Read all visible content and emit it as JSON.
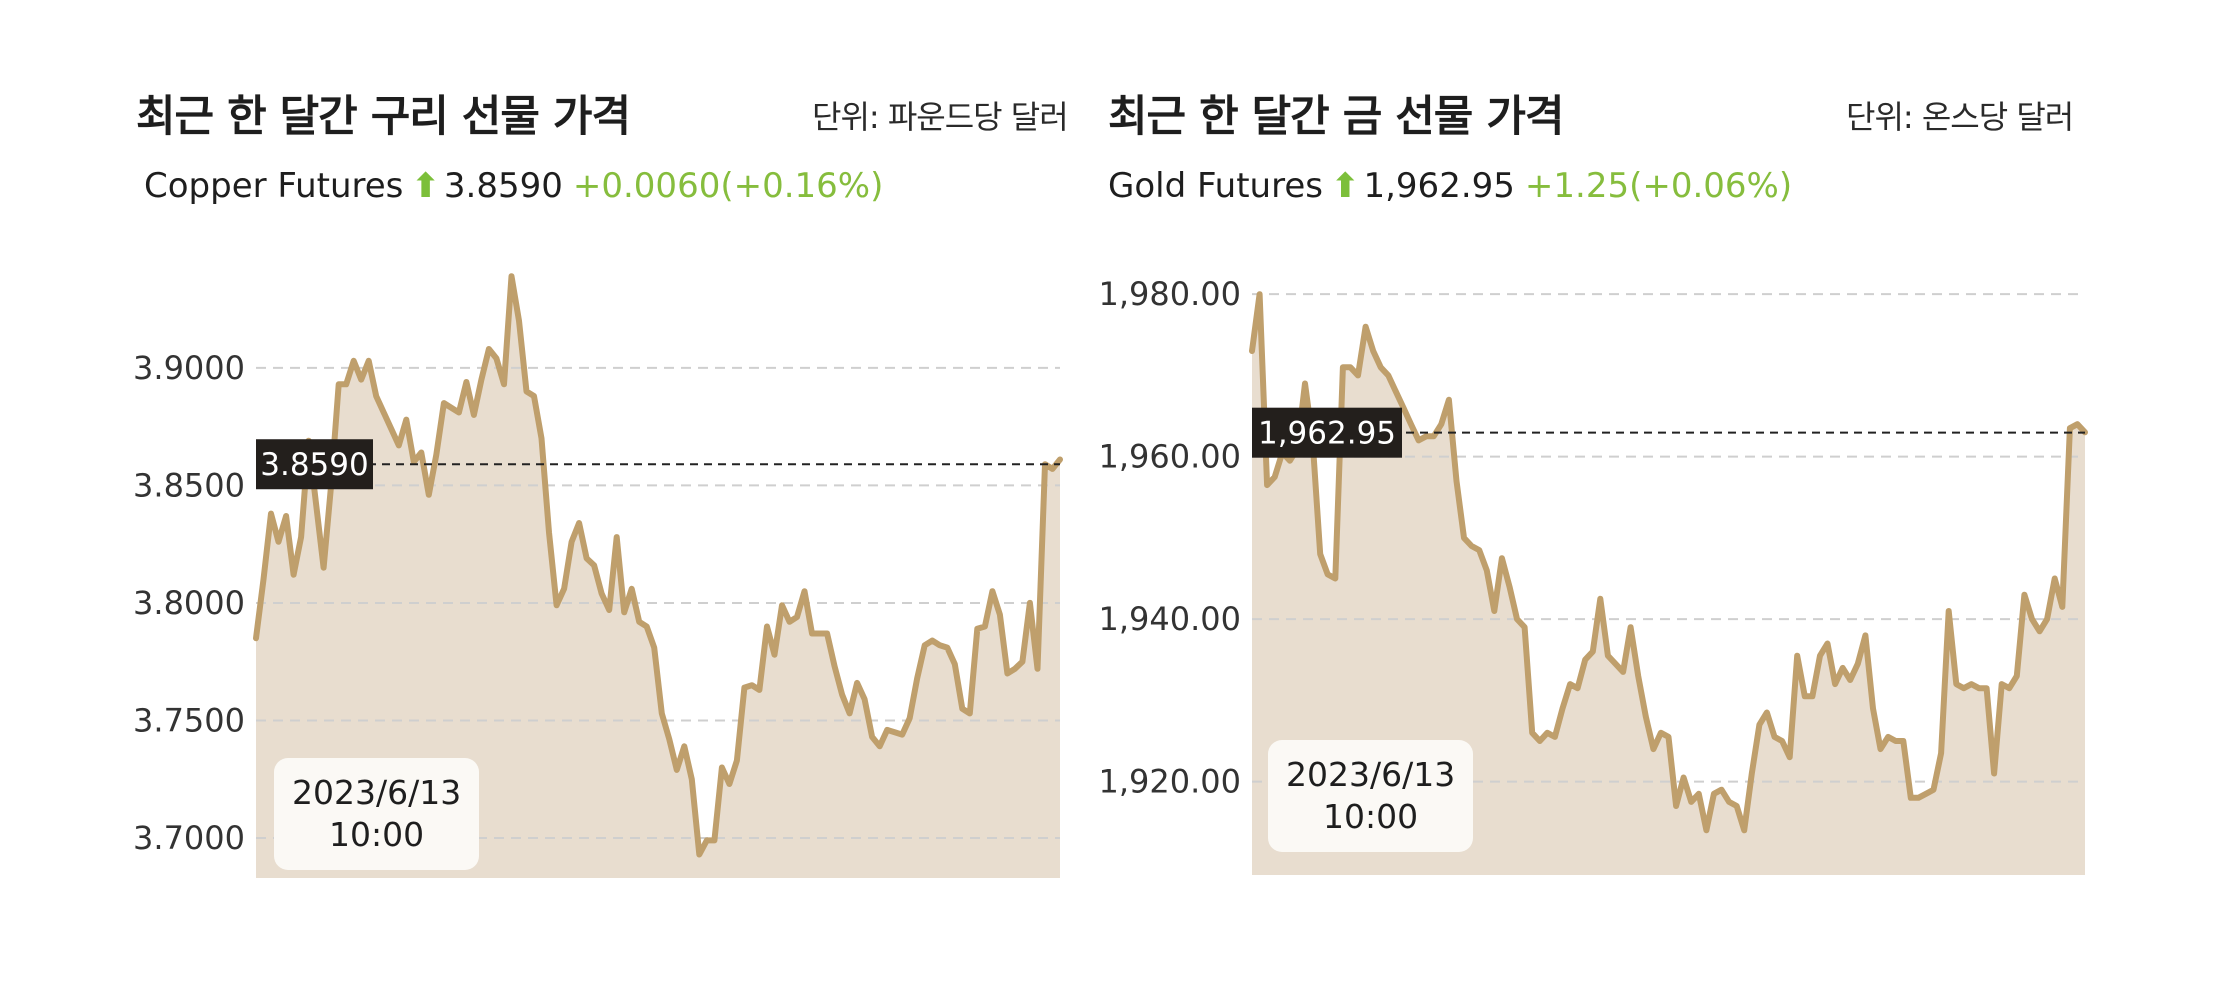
{
  "colors": {
    "line": "#bf9f6c",
    "area": "#e8ddcf",
    "grid": "#cfcfcf",
    "up": "#7cbf3a",
    "tag_bg": "#231f1c"
  },
  "copper": {
    "title": "최근 한 달간 구리 선물 가격",
    "unit": "단위: 파운드당 달러",
    "instrument": "Copper Futures",
    "arrow": "⬆",
    "price": "3.8590",
    "change": "+0.0060(+0.16%)",
    "tag": "3.8590",
    "date": "2023/6/13",
    "time": "10:00"
  },
  "gold": {
    "title": "최근 한 달간 금 선물 가격",
    "unit": "단위: 온스당 달러",
    "instrument": "Gold Futures",
    "arrow": "⬆",
    "price": "1,962.95",
    "change": "+1.25(+0.06%)",
    "tag": "1,962.95",
    "date": "2023/6/13",
    "time": "10:00"
  },
  "chart_data": [
    {
      "type": "area",
      "title": "최근 한 달간 구리 선물 가격",
      "ylabel": "단위: 파운드당 달러",
      "series": [
        {
          "name": "Copper Futures",
          "values": [
            3.785,
            3.81,
            3.838,
            3.826,
            3.837,
            3.812,
            3.828,
            3.869,
            3.842,
            3.815,
            3.85,
            3.893,
            3.893,
            3.903,
            3.895,
            3.903,
            3.888,
            3.881,
            3.874,
            3.867,
            3.878,
            3.86,
            3.864,
            3.846,
            3.863,
            3.885,
            3.883,
            3.881,
            3.894,
            3.88,
            3.895,
            3.908,
            3.904,
            3.893,
            3.939,
            3.92,
            3.89,
            3.888,
            3.87,
            3.83,
            3.799,
            3.806,
            3.826,
            3.834,
            3.819,
            3.816,
            3.804,
            3.797,
            3.828,
            3.796,
            3.806,
            3.792,
            3.79,
            3.781,
            3.753,
            3.742,
            3.729,
            3.739,
            3.725,
            3.693,
            3.699,
            3.699,
            3.73,
            3.723,
            3.733,
            3.764,
            3.765,
            3.763,
            3.79,
            3.778,
            3.799,
            3.792,
            3.794,
            3.805,
            3.787,
            3.787,
            3.787,
            3.773,
            3.761,
            3.753,
            3.766,
            3.759,
            3.743,
            3.739,
            3.746,
            3.745,
            3.744,
            3.751,
            3.768,
            3.782,
            3.784,
            3.782,
            3.781,
            3.774,
            3.755,
            3.753,
            3.789,
            3.79,
            3.805,
            3.795,
            3.77,
            3.772,
            3.775,
            3.8,
            3.772,
            3.859,
            3.857,
            3.861
          ]
        }
      ],
      "yticks": [
        "3.9000",
        "3.8500",
        "3.8000",
        "3.7500",
        "3.7000"
      ],
      "ylim": [
        3.683,
        3.9446
      ],
      "reference": 3.859,
      "grid": true
    },
    {
      "type": "area",
      "title": "최근 한 달간 금 선물 가격",
      "ylabel": "단위: 온스당 달러",
      "series": [
        {
          "name": "Gold Futures",
          "values": [
            1973,
            1980,
            1956.5,
            1957.5,
            1960.5,
            1959.5,
            1961,
            1969,
            1962,
            1948,
            1945.5,
            1945,
            1971,
            1971,
            1970,
            1976,
            1973,
            1971,
            1970,
            1968,
            1966,
            1964,
            1962,
            1962.5,
            1962.5,
            1964,
            1967,
            1957,
            1950,
            1949,
            1948.5,
            1946,
            1941,
            1947.5,
            1944,
            1940,
            1939,
            1926,
            1925,
            1926,
            1925.5,
            1929,
            1932,
            1931.5,
            1935,
            1936,
            1942.5,
            1935.5,
            1934.5,
            1933.5,
            1939,
            1933,
            1928,
            1924,
            1926,
            1925.5,
            1917,
            1920.5,
            1917.5,
            1918.5,
            1914,
            1918.5,
            1919,
            1917.5,
            1917,
            1914,
            1921,
            1927,
            1928.5,
            1925.5,
            1925,
            1923,
            1935.5,
            1930.5,
            1930.5,
            1935.5,
            1937,
            1932,
            1934,
            1932.5,
            1934.5,
            1938,
            1929,
            1924,
            1925.5,
            1925,
            1925,
            1918,
            1918,
            1918.5,
            1919,
            1923.5,
            1941,
            1932,
            1931.5,
            1932,
            1931.5,
            1931.5,
            1921,
            1932,
            1931.5,
            1933,
            1943,
            1940,
            1938.5,
            1940,
            1945,
            1941.5,
            1963.5,
            1964,
            1963
          ]
        }
      ],
      "yticks": [
        "1,980.00",
        "1,960.00",
        "1,940.00",
        "1,920.00"
      ],
      "ylim": [
        1908.5,
        1981.5
      ],
      "reference": 1962.95,
      "grid": true
    }
  ]
}
